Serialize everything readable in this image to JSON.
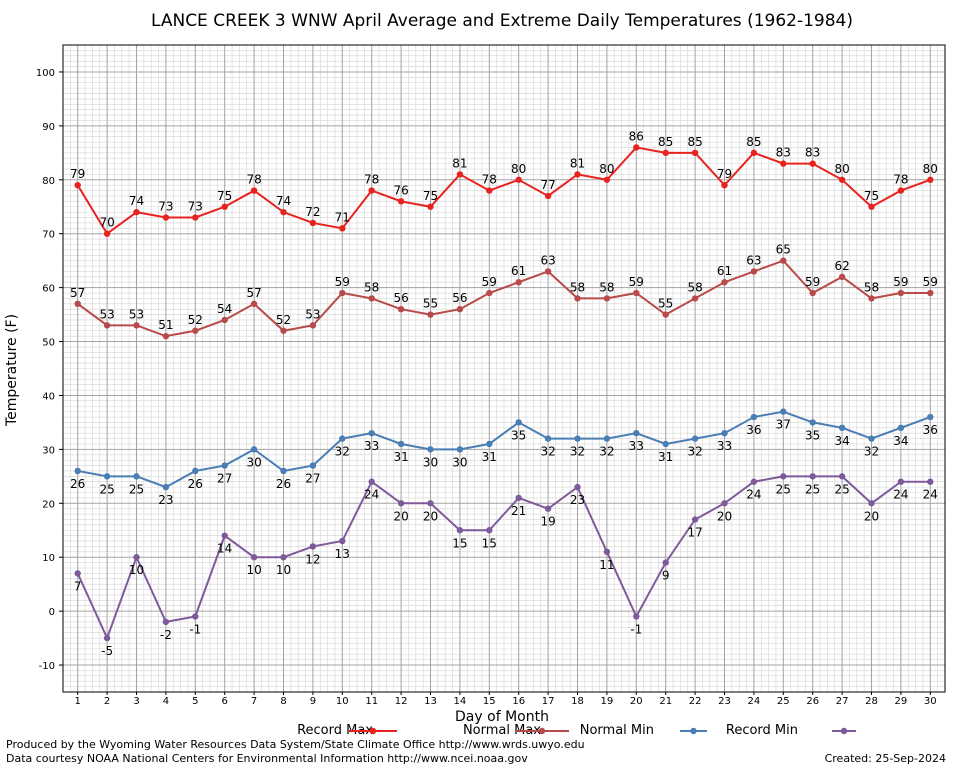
{
  "chart_data": {
    "type": "line",
    "title": "LANCE CREEK 3 WNW April Average and Extreme Daily Temperatures (1962-1984)",
    "xlabel": "Day of Month",
    "ylabel": "Temperature (F)",
    "ylim": [
      -15,
      105
    ],
    "xlim": [
      0.5,
      30.5
    ],
    "yticks": [
      -10,
      0,
      10,
      20,
      30,
      40,
      50,
      60,
      70,
      80,
      90,
      100
    ],
    "x": [
      1,
      2,
      3,
      4,
      5,
      6,
      7,
      8,
      9,
      10,
      11,
      12,
      13,
      14,
      15,
      16,
      17,
      18,
      19,
      20,
      21,
      22,
      23,
      24,
      25,
      26,
      27,
      28,
      29,
      30
    ],
    "grid": true,
    "legend_position": "bottom",
    "series": [
      {
        "name": "Record Max",
        "color": "#e8231f",
        "label_pos": "above",
        "values": [
          79,
          70,
          74,
          73,
          73,
          75,
          78,
          74,
          72,
          71,
          78,
          76,
          75,
          81,
          78,
          80,
          77,
          81,
          80,
          86,
          85,
          85,
          79,
          85,
          83,
          83,
          80,
          75,
          78,
          80
        ]
      },
      {
        "name": "Normal Max",
        "color": "#b84a4a",
        "label_pos": "above",
        "values": [
          57,
          53,
          53,
          51,
          52,
          54,
          57,
          52,
          53,
          59,
          58,
          56,
          55,
          56,
          59,
          61,
          63,
          58,
          58,
          59,
          55,
          58,
          61,
          63,
          65,
          59,
          62,
          58,
          59,
          59
        ]
      },
      {
        "name": "Normal Min",
        "color": "#4a7db4",
        "label_pos": "below",
        "values": [
          26,
          25,
          25,
          23,
          26,
          27,
          30,
          26,
          27,
          32,
          33,
          31,
          30,
          30,
          31,
          35,
          32,
          32,
          32,
          33,
          31,
          32,
          33,
          36,
          37,
          35,
          34,
          32,
          34,
          36
        ]
      },
      {
        "name": "Record Min",
        "color": "#7e5a9b",
        "label_pos": "below",
        "values": [
          7,
          -5,
          10,
          -2,
          -1,
          14,
          10,
          10,
          12,
          13,
          24,
          20,
          20,
          15,
          15,
          21,
          19,
          23,
          11,
          -1,
          9,
          17,
          20,
          24,
          25,
          25,
          25,
          20,
          24,
          24
        ]
      }
    ]
  },
  "footer": {
    "credit_line1": "Produced by the Wyoming Water Resources Data System/State Climate Office http://www.wrds.uwyo.edu",
    "credit_line2": "Data courtesy NOAA National Centers for Environmental Information http://www.ncei.noaa.gov",
    "created": "Created:  25-Sep-2024"
  }
}
